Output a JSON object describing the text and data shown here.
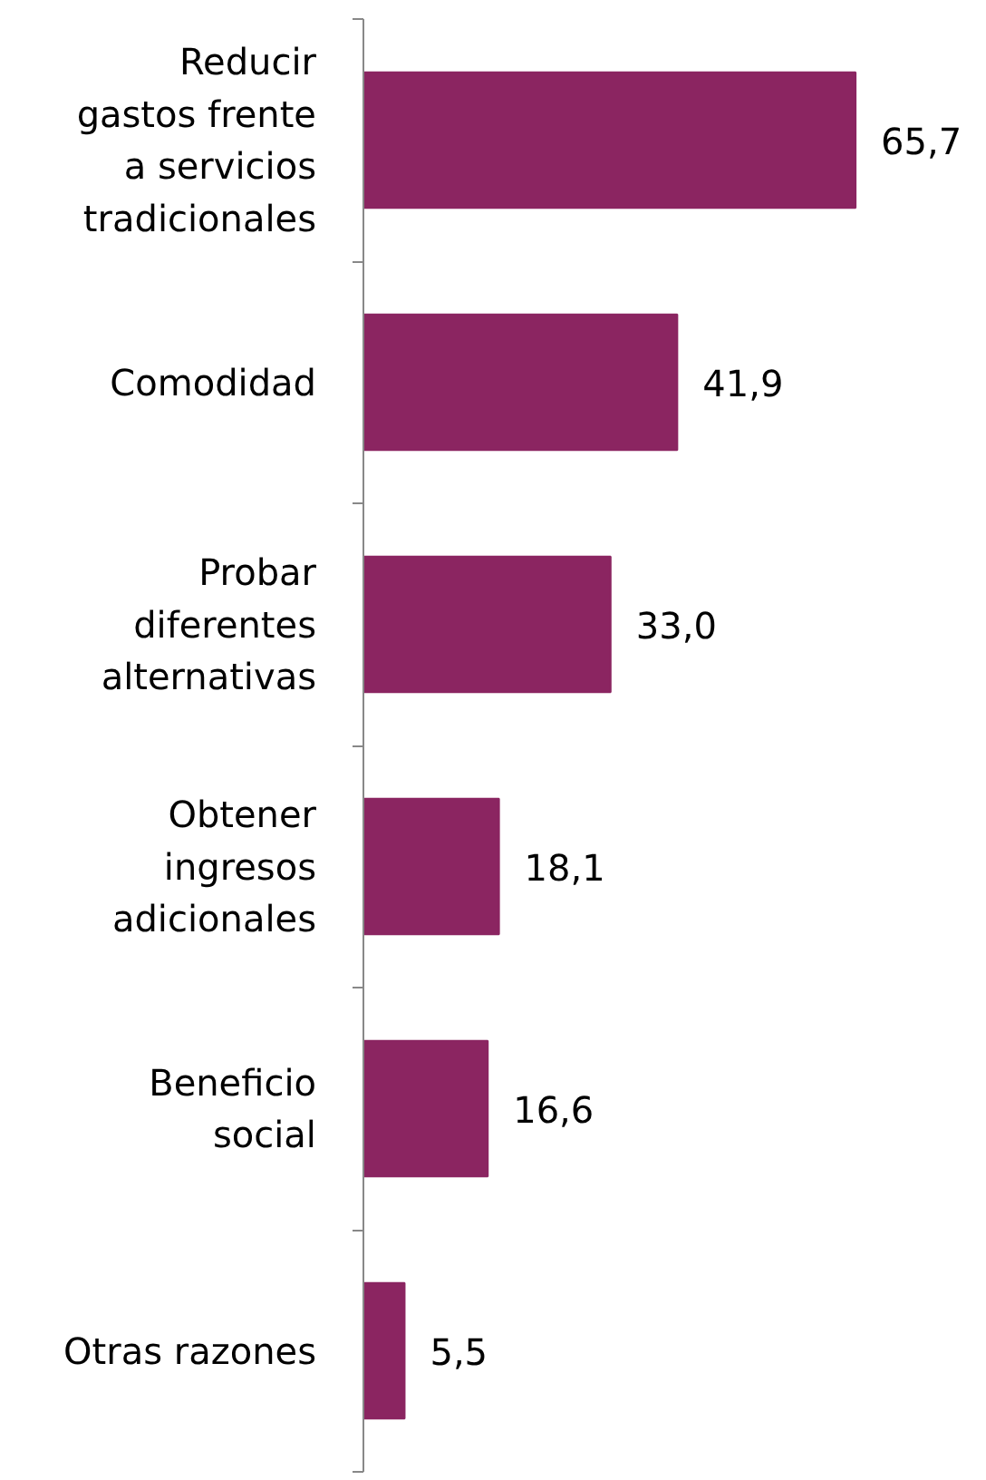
{
  "chart_data": {
    "type": "bar",
    "orientation": "horizontal",
    "grid": false,
    "categories": [
      "Reducir\ngastos frente\na servicios\ntradicionales",
      "Comodidad",
      "Probar\ndiferentes\nalternativas",
      "Obtener\ningresos\nadicionales",
      "Beneficio\nsocial",
      "Otras razones"
    ],
    "values": [
      65.7,
      41.9,
      33.0,
      18.1,
      16.6,
      5.5
    ],
    "value_labels": [
      "65,7",
      "41,9",
      "33,0",
      "18,1",
      "16,6",
      "5,5"
    ],
    "color": "#8b2561"
  }
}
